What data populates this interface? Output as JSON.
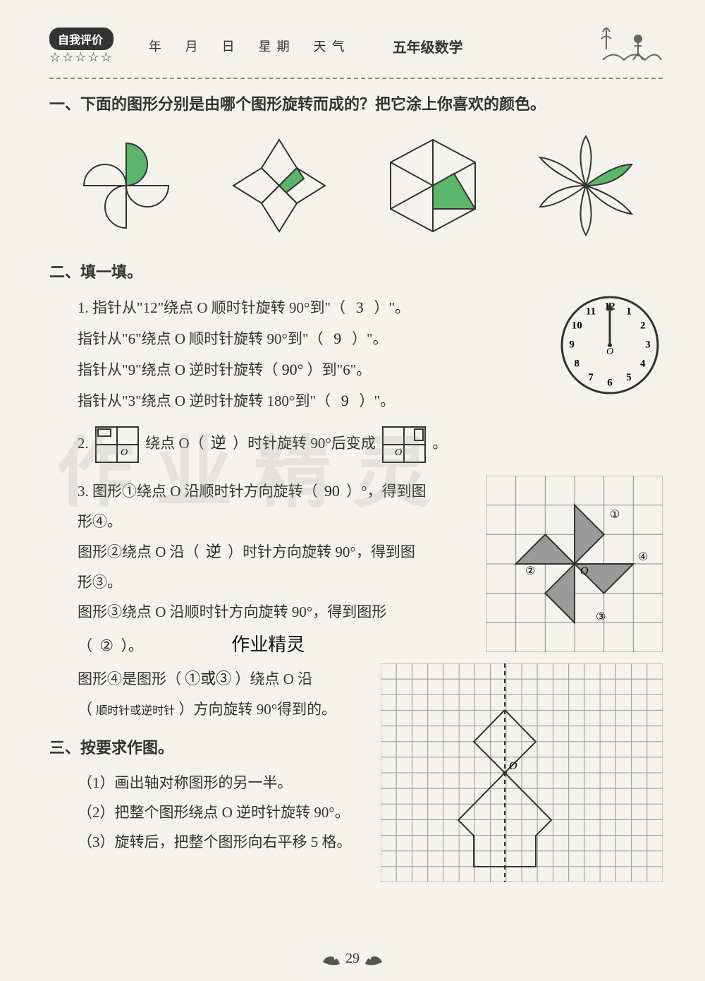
{
  "header": {
    "badge": "自我评价",
    "stars": "☆☆☆☆☆",
    "fields": "年　月　日　星期　天气",
    "grade": "五年级数学"
  },
  "section1": {
    "title": "一、下面的图形分别是由哪个图形旋转而成的？把它涂上你喜欢的颜色。",
    "highlight_color": "#5bb66a",
    "stroke": "#333333"
  },
  "section2": {
    "title": "二、填一填。",
    "q1": {
      "line1_pre": "1. 指针从\"12\"绕点 O 顺时针旋转 90°到\"（",
      "line1_ans": "3",
      "line1_post": "）\"。",
      "line2_pre": "指针从\"6\"绕点 O 顺时针旋转 90°到\"（",
      "line2_ans": "9",
      "line2_post": "）\"。",
      "line3_pre": "指针从\"9\"绕点 O 逆时针旋转（",
      "line3_ans": "90°",
      "line3_post": "）到\"6\"。",
      "line4_pre": "指针从\"3\"绕点 O 逆时针旋转 180°到\"（",
      "line4_ans": "9",
      "line4_post": "）\"。"
    },
    "clock": {
      "numbers": [
        "12",
        "1",
        "2",
        "3",
        "4",
        "5",
        "6",
        "7",
        "8",
        "9",
        "10",
        "11"
      ],
      "center_label": "O"
    },
    "q2": {
      "pre": "2. ",
      "mid1": " 绕点 O（",
      "ans": "逆",
      "mid2": "）时针旋转 90°后变成 ",
      "post": "。"
    },
    "q3": {
      "line1_pre": "3. 图形①绕点 O 沿顺时针方向旋转（",
      "line1_ans": "90",
      "line1_post": "）°，得到图",
      "line1b": "形④。",
      "line2_pre": "图形②绕点 O 沿（",
      "line2_ans": "逆",
      "line2_post": "）时针方向旋转 90°，得到图",
      "line2b": "形③。",
      "line3": "图形③绕点 O 沿顺时针方向旋转 90°，得到图形",
      "line3_ans_pre": "（",
      "line3_ans": "②",
      "line3_ans_post": "）。",
      "handwrite_note": "作业精灵",
      "line4_pre": "图形④是图形（",
      "line4_ans1": "①或③",
      "line4_mid": "）绕点 O 沿",
      "line5_pre": "（",
      "line5_ans": "顺时针或逆时针",
      "line5_post": "）方向旋转 90°得到的。",
      "grid": {
        "labels": [
          "①",
          "②",
          "③",
          "④"
        ],
        "center_label": "O",
        "fill": "#9a9a9a"
      }
    }
  },
  "section3": {
    "title": "三、按要求作图。",
    "items": [
      "（1）画出轴对称图形的另一半。",
      "（2）把整个图形绕点 O 逆时针旋转 90°。",
      "（3）旋转后，把整个图形向右平移 5 格。"
    ],
    "grid": {
      "center_label": "O"
    }
  },
  "watermark": "作业精灵",
  "footer": {
    "page": "29"
  }
}
